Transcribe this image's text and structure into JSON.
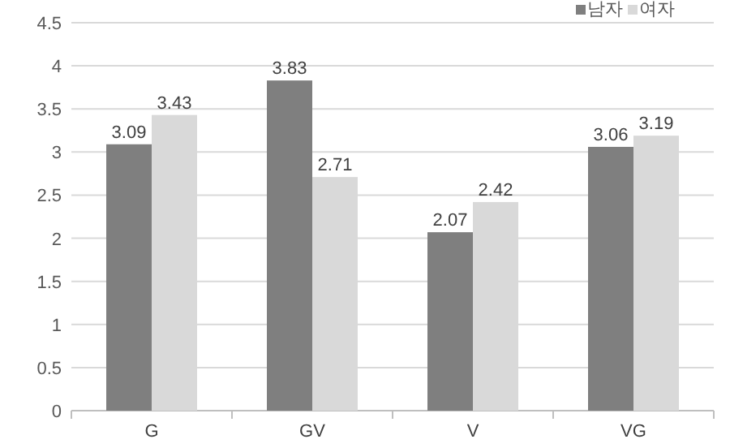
{
  "chart_data": {
    "type": "bar",
    "categories": [
      "G",
      "GV",
      "V",
      "VG"
    ],
    "series": [
      {
        "name": "남자",
        "color": "#7f7f7f",
        "values": [
          3.09,
          3.83,
          2.07,
          3.06
        ]
      },
      {
        "name": "여자",
        "color": "#d9d9d9",
        "values": [
          3.43,
          2.71,
          2.42,
          3.19
        ]
      }
    ],
    "ylim": [
      0,
      4.5
    ],
    "yticks": [
      0,
      0.5,
      1,
      1.5,
      2,
      2.5,
      3,
      3.5,
      4,
      4.5
    ],
    "grid": "y",
    "legend": "top right",
    "data_labels": true
  }
}
